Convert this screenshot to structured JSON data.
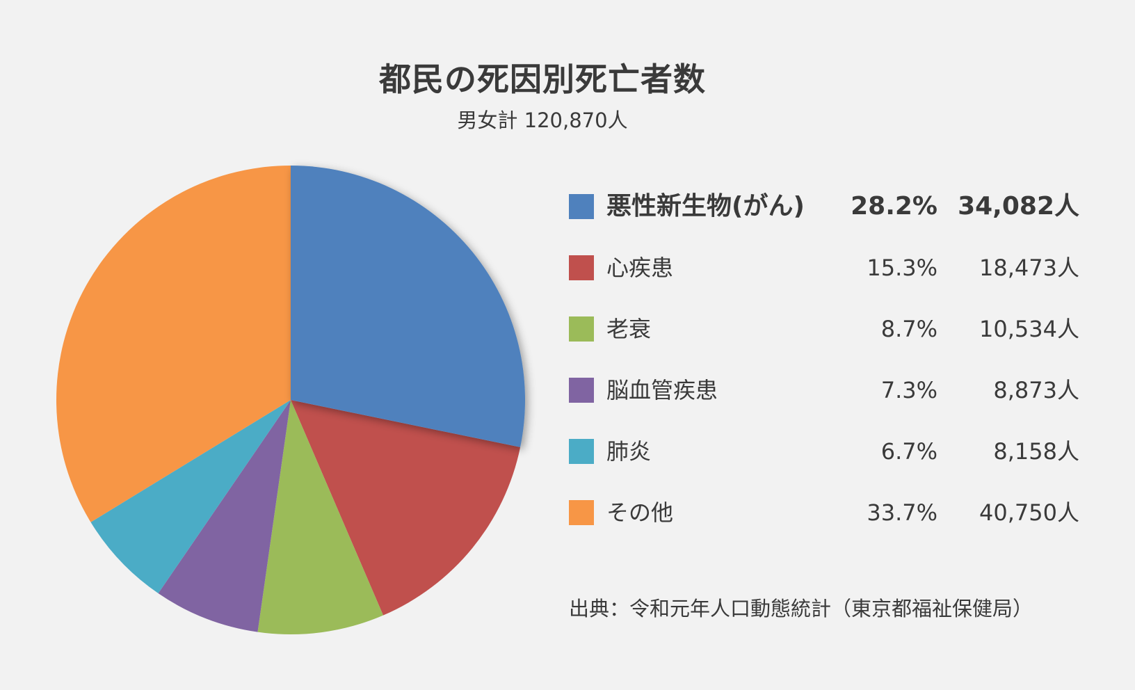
{
  "chart_data": {
    "type": "pie",
    "title": "都民の死因別死亡者数",
    "subtitle": "男女計 120,870人",
    "slices": [
      {
        "label": "悪性新生物(がん)",
        "percent": 28.2,
        "percent_text": "28.2%",
        "count": 34082,
        "count_text": "34,082人",
        "color": "#4f81bd"
      },
      {
        "label": "心疾患",
        "percent": 15.3,
        "percent_text": "15.3%",
        "count": 18473,
        "count_text": "18,473人",
        "color": "#c0504d"
      },
      {
        "label": "老衰",
        "percent": 8.7,
        "percent_text": "8.7%",
        "count": 10534,
        "count_text": "10,534人",
        "color": "#9bbb59"
      },
      {
        "label": "脳血管疾患",
        "percent": 7.3,
        "percent_text": "7.3%",
        "count": 8873,
        "count_text": "8,873人",
        "color": "#8064a2"
      },
      {
        "label": "肺炎",
        "percent": 6.7,
        "percent_text": "6.7%",
        "count": 8158,
        "count_text": "8,158人",
        "color": "#4bacc6"
      },
      {
        "label": "その他",
        "percent": 33.7,
        "percent_text": "33.7%",
        "count": 40750,
        "count_text": "40,750人",
        "color": "#f79646"
      }
    ],
    "legend_position": "right",
    "source": "出典：令和元年人口動態統計（東京都福祉保健局）"
  }
}
